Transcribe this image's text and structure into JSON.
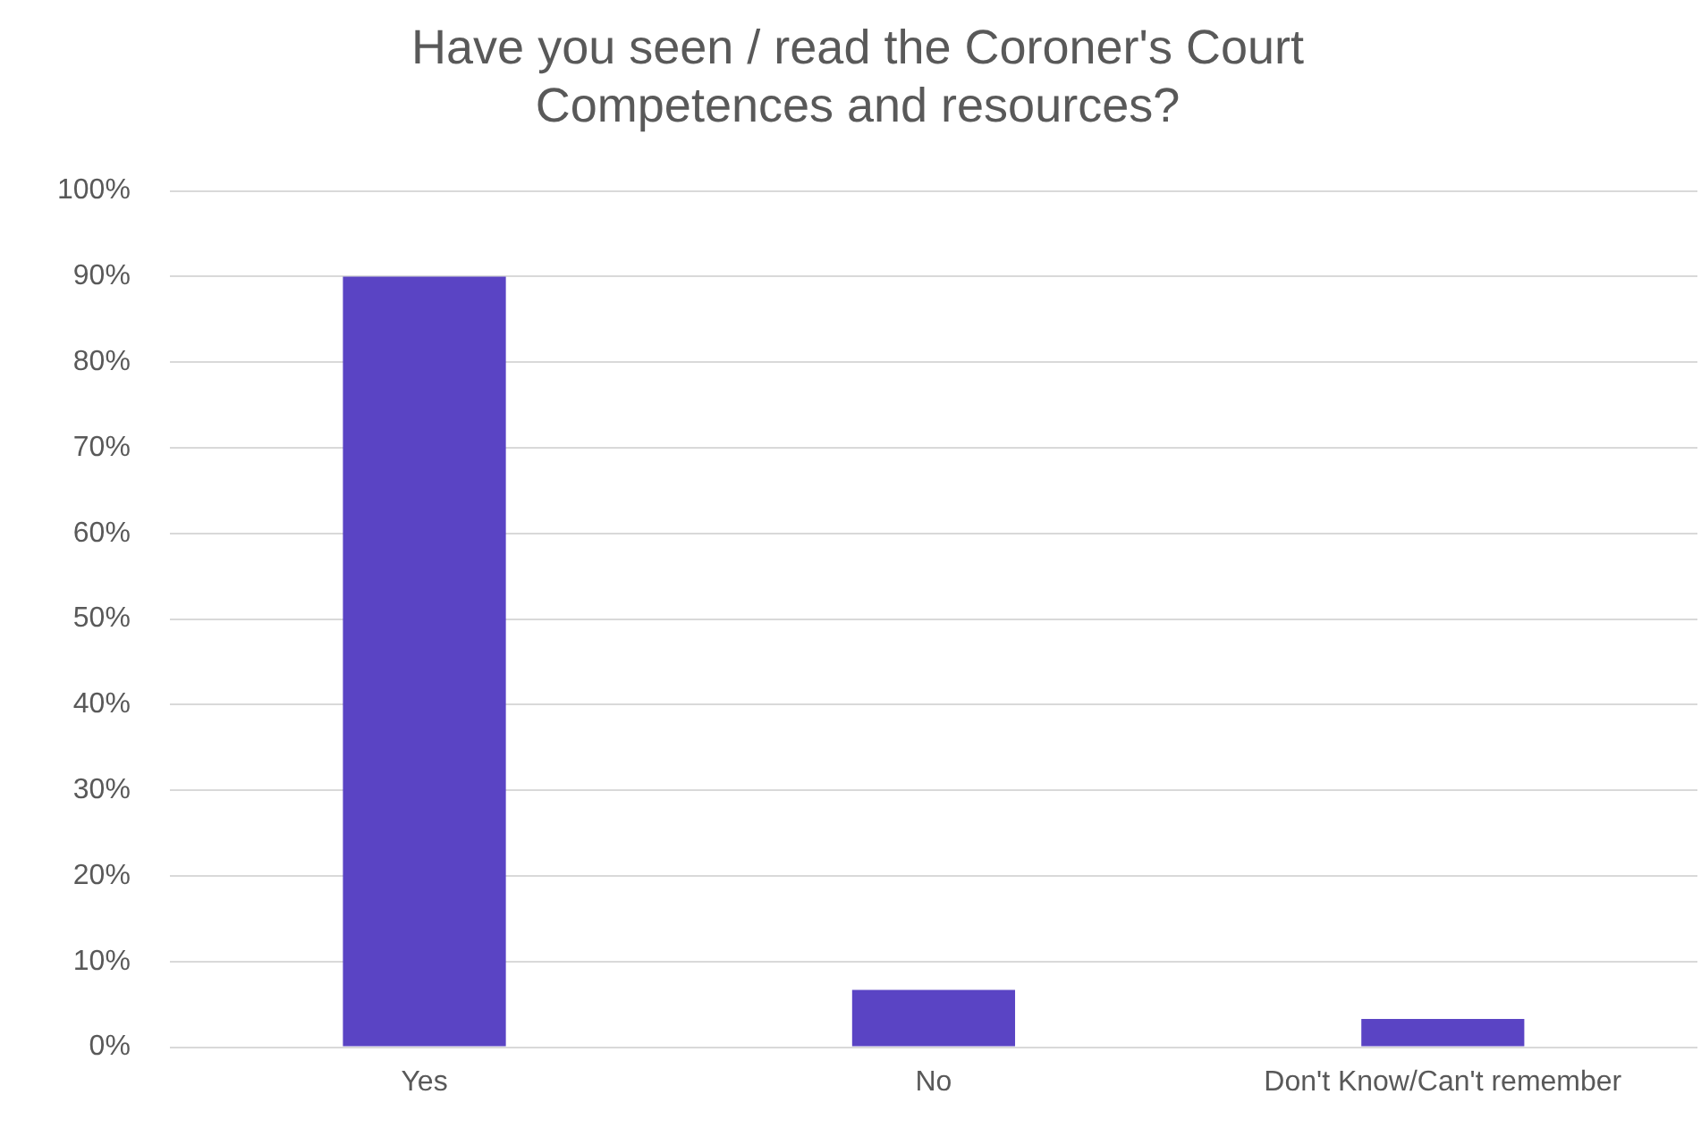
{
  "chart_data": {
    "type": "bar",
    "title": [
      "Have you seen / read the Coroner's Court",
      "Competences and resources?"
    ],
    "categories": [
      "Yes",
      "No",
      "Don't Know/Can't remember"
    ],
    "values": [
      90,
      6.7,
      3.3
    ],
    "color": "#5a44c4",
    "ylim": [
      0,
      100
    ],
    "yticks": [
      {
        "value": 0,
        "label": "0%"
      },
      {
        "value": 10,
        "label": "10%"
      },
      {
        "value": 20,
        "label": "20%"
      },
      {
        "value": 30,
        "label": "30%"
      },
      {
        "value": 40,
        "label": "40%"
      },
      {
        "value": 50,
        "label": "50%"
      },
      {
        "value": 60,
        "label": "60%"
      },
      {
        "value": 70,
        "label": "70%"
      },
      {
        "value": 80,
        "label": "80%"
      },
      {
        "value": 90,
        "label": "90%"
      },
      {
        "value": 100,
        "label": "100%"
      }
    ],
    "grid": "y",
    "legend": false
  }
}
